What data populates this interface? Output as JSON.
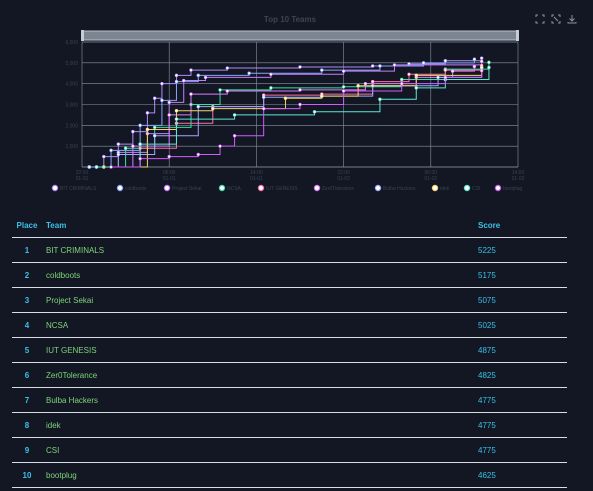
{
  "chart_data": {
    "type": "line",
    "title": "Top 10 Teams",
    "x_tick_labels": [
      [
        "22:00",
        "01-01"
      ],
      [
        "06:00",
        "01-01"
      ],
      [
        "14:00",
        "01-01"
      ],
      [
        "22:00",
        "01-02"
      ],
      [
        "06:00",
        "01-02"
      ],
      [
        "14:00",
        "01-03"
      ]
    ],
    "xlim": [
      0,
      6
    ],
    "y_tick_labels": [
      "1,000",
      "2,000",
      "3,000",
      "4,000",
      "5,000",
      "6,000"
    ],
    "ylim": [
      0,
      6000
    ],
    "grid": true,
    "legend_position": "bottom",
    "series": [
      {
        "name": "BIT CRIMINALS",
        "color": "#b38bff",
        "values": [
          [
            0.1,
            0
          ],
          [
            0.3,
            500
          ],
          [
            0.5,
            1100
          ],
          [
            0.7,
            1700
          ],
          [
            0.9,
            2600
          ],
          [
            1.0,
            3300
          ],
          [
            1.1,
            4000
          ],
          [
            1.3,
            4400
          ],
          [
            1.5,
            4650
          ],
          [
            2.0,
            4750
          ],
          [
            3.0,
            4800
          ],
          [
            4.0,
            4850
          ],
          [
            4.5,
            4950
          ],
          [
            5.0,
            5100
          ],
          [
            5.5,
            5225
          ]
        ]
      },
      {
        "name": "coldboots",
        "color": "#8aa6ff",
        "values": [
          [
            0.1,
            0
          ],
          [
            0.4,
            800
          ],
          [
            0.8,
            2000
          ],
          [
            1.1,
            3200
          ],
          [
            1.3,
            4100
          ],
          [
            1.6,
            4400
          ],
          [
            2.3,
            4500
          ],
          [
            3.3,
            4650
          ],
          [
            4.1,
            4850
          ],
          [
            4.7,
            5000
          ],
          [
            5.4,
            5175
          ]
        ]
      },
      {
        "name": "Project Sekai",
        "color": "#c77dff",
        "values": [
          [
            0.2,
            0
          ],
          [
            0.5,
            700
          ],
          [
            0.9,
            1600
          ],
          [
            1.2,
            3100
          ],
          [
            1.4,
            4150
          ],
          [
            1.7,
            4300
          ],
          [
            2.6,
            4450
          ],
          [
            3.6,
            4600
          ],
          [
            4.3,
            4900
          ],
          [
            5.5,
            5075
          ]
        ]
      },
      {
        "name": "NCSA",
        "color": "#36e0a0",
        "values": [
          [
            0.1,
            0
          ],
          [
            0.6,
            900
          ],
          [
            1.0,
            1900
          ],
          [
            1.5,
            3000
          ],
          [
            1.9,
            3700
          ],
          [
            2.6,
            3800
          ],
          [
            3.6,
            3850
          ],
          [
            4.4,
            4200
          ],
          [
            5.0,
            4700
          ],
          [
            5.6,
            5025
          ]
        ]
      },
      {
        "name": "IUT GENESIS",
        "color": "#ff6fa8",
        "values": [
          [
            0.3,
            0
          ],
          [
            0.8,
            900
          ],
          [
            1.3,
            2100
          ],
          [
            1.8,
            2900
          ],
          [
            2.5,
            3450
          ],
          [
            3.3,
            3500
          ],
          [
            4.0,
            4100
          ],
          [
            4.5,
            4450
          ],
          [
            5.0,
            4650
          ],
          [
            5.5,
            4875
          ]
        ]
      },
      {
        "name": "Zer0Tolerance",
        "color": "#e07bff",
        "values": [
          [
            0.2,
            0
          ],
          [
            0.7,
            1000
          ],
          [
            1.2,
            2500
          ],
          [
            1.5,
            3500
          ],
          [
            2.0,
            3650
          ],
          [
            3.0,
            3700
          ],
          [
            3.9,
            4000
          ],
          [
            4.6,
            4300
          ],
          [
            5.1,
            4600
          ],
          [
            5.4,
            4825
          ]
        ]
      },
      {
        "name": "Bulba Hackers",
        "color": "#9ea9ff",
        "values": [
          [
            0.1,
            0
          ],
          [
            0.5,
            600
          ],
          [
            1.0,
            1500
          ],
          [
            1.6,
            2900
          ],
          [
            2.5,
            3350
          ],
          [
            3.3,
            3400
          ],
          [
            4.0,
            3900
          ],
          [
            4.9,
            4300
          ],
          [
            5.5,
            4775
          ]
        ]
      },
      {
        "name": "idek",
        "color": "#f5d36a",
        "values": [
          [
            0.3,
            0
          ],
          [
            0.9,
            1800
          ],
          [
            1.3,
            2700
          ],
          [
            1.8,
            2800
          ],
          [
            2.8,
            3300
          ],
          [
            3.3,
            3400
          ],
          [
            3.8,
            3900
          ],
          [
            4.6,
            4400
          ],
          [
            5.5,
            4775
          ]
        ]
      },
      {
        "name": "CSI",
        "color": "#5de8d6",
        "values": [
          [
            0.2,
            0
          ],
          [
            0.8,
            1100
          ],
          [
            1.3,
            2300
          ],
          [
            2.1,
            2500
          ],
          [
            3.2,
            2650
          ],
          [
            4.1,
            3250
          ],
          [
            4.6,
            3800
          ],
          [
            5.0,
            4200
          ],
          [
            5.6,
            4775
          ]
        ]
      },
      {
        "name": "bootplug",
        "color": "#d35cff",
        "values": [
          [
            0.4,
            0
          ],
          [
            0.8,
            400
          ],
          [
            1.2,
            500
          ],
          [
            1.6,
            600
          ],
          [
            1.9,
            1000
          ],
          [
            2.1,
            1500
          ],
          [
            2.5,
            2800
          ],
          [
            3.0,
            3000
          ],
          [
            3.6,
            3650
          ],
          [
            4.4,
            4000
          ],
          [
            5.0,
            4300
          ],
          [
            5.5,
            4625
          ]
        ]
      }
    ]
  },
  "table": {
    "headers": {
      "place": "Place",
      "team": "Team",
      "score": "Score"
    },
    "rows": [
      {
        "place": "1",
        "team": "BIT CRIMINALS",
        "score": "5225"
      },
      {
        "place": "2",
        "team": "coldboots",
        "score": "5175"
      },
      {
        "place": "3",
        "team": "Project Sekai",
        "score": "5075"
      },
      {
        "place": "4",
        "team": "NCSA",
        "score": "5025"
      },
      {
        "place": "5",
        "team": "IUT GENESIS",
        "score": "4875"
      },
      {
        "place": "6",
        "team": "Zer0Tolerance",
        "score": "4825"
      },
      {
        "place": "7",
        "team": "Bulba Hackers",
        "score": "4775"
      },
      {
        "place": "8",
        "team": "idek",
        "score": "4775"
      },
      {
        "place": "9",
        "team": "CSI",
        "score": "4775"
      },
      {
        "place": "10",
        "team": "bootplug",
        "score": "4625"
      }
    ]
  },
  "toolbox": {
    "icons": [
      "zoom-icon",
      "zoom-reset-icon",
      "save-image-icon"
    ]
  },
  "colors": {
    "background": "#121723",
    "accent": "#3bc0e8",
    "team_text": "#7fd47a",
    "grid": "#9aa3b2"
  }
}
